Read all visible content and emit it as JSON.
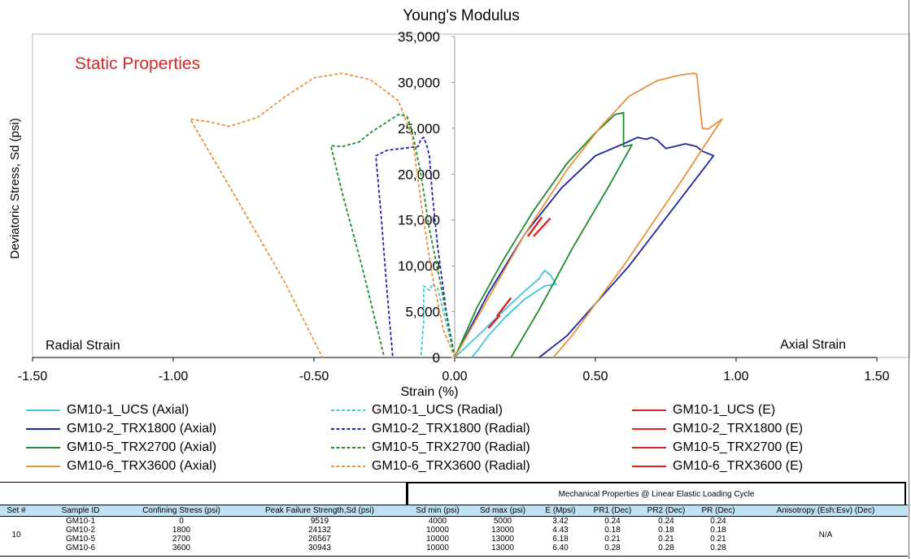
{
  "chart_data": {
    "type": "line",
    "title": "Young's Modulus",
    "xlabel": "Strain (%)",
    "ylabel": "Deviatoric Stress, Sd (psi)",
    "xlim": [
      -1.5,
      1.5
    ],
    "ylim": [
      0,
      35000
    ],
    "x_ticks": [
      -1.5,
      -1.0,
      -0.5,
      0.0,
      0.5,
      1.0,
      1.5
    ],
    "x_tick_labels": [
      "-1.50",
      "-1.00",
      "-0.50",
      "0.00",
      "0.50",
      "1.00",
      "1.50"
    ],
    "y_ticks": [
      0,
      5000,
      10000,
      15000,
      20000,
      25000,
      30000,
      35000
    ],
    "y_tick_labels": [
      "0",
      "5,000",
      "10,000",
      "15,000",
      "20,000",
      "25,000",
      "30,000",
      "35,000"
    ],
    "grid": false,
    "legend_position": "bottom",
    "annotations": {
      "static": "Static Properties",
      "radial": "Radial Strain",
      "axial": "Axial Strain"
    },
    "series": [
      {
        "name": "GM10-1_UCS (Axial)",
        "color": "#3cc7df",
        "style": "solid",
        "points": [
          [
            0.0,
            0
          ],
          [
            0.08,
            2300
          ],
          [
            0.16,
            4700
          ],
          [
            0.24,
            7000
          ],
          [
            0.3,
            8600
          ],
          [
            0.32,
            9500
          ],
          [
            0.34,
            9000
          ],
          [
            0.36,
            8000
          ],
          [
            0.32,
            7800
          ],
          [
            0.25,
            6400
          ],
          [
            0.18,
            4400
          ],
          [
            0.12,
            2400
          ],
          [
            0.08,
            700
          ],
          [
            0.06,
            0
          ]
        ]
      },
      {
        "name": "GM10-1_UCS (Radial)",
        "color": "#3cc7df",
        "style": "dashed",
        "points": [
          [
            0.0,
            0
          ],
          [
            -0.02,
            2500
          ],
          [
            -0.04,
            5000
          ],
          [
            -0.06,
            7500
          ],
          [
            -0.08,
            8000
          ],
          [
            -0.09,
            7300
          ],
          [
            -0.1,
            7600
          ],
          [
            -0.11,
            7800
          ],
          [
            -0.11,
            4000
          ],
          [
            -0.12,
            0
          ]
        ]
      },
      {
        "name": "GM10-1_UCS (E)",
        "color": "#e02020",
        "style": "solid",
        "points": [
          [
            0.12,
            3200
          ],
          [
            0.16,
            4600
          ]
        ]
      },
      {
        "name": "GM10-2_TRX1800 (Axial)",
        "color": "#1e26a0",
        "style": "solid",
        "points": [
          [
            0.0,
            0
          ],
          [
            0.12,
            7000
          ],
          [
            0.25,
            13500
          ],
          [
            0.38,
            18500
          ],
          [
            0.5,
            22000
          ],
          [
            0.6,
            23300
          ],
          [
            0.65,
            24000
          ],
          [
            0.68,
            23800
          ],
          [
            0.7,
            24000
          ],
          [
            0.72,
            23700
          ],
          [
            0.75,
            22800
          ],
          [
            0.78,
            23000
          ],
          [
            0.82,
            23300
          ],
          [
            0.86,
            23000
          ],
          [
            0.88,
            22500
          ],
          [
            0.92,
            22000
          ],
          [
            0.82,
            18000
          ],
          [
            0.62,
            10000
          ],
          [
            0.4,
            2400
          ],
          [
            0.3,
            0
          ]
        ]
      },
      {
        "name": "GM10-2_TRX1800 (Radial)",
        "color": "#1e26a0",
        "style": "dashed",
        "points": [
          [
            0.0,
            0
          ],
          [
            -0.03,
            5000
          ],
          [
            -0.06,
            12000
          ],
          [
            -0.08,
            18000
          ],
          [
            -0.09,
            22000
          ],
          [
            -0.1,
            23200
          ],
          [
            -0.11,
            24000
          ],
          [
            -0.12,
            23800
          ],
          [
            -0.13,
            23000
          ],
          [
            -0.16,
            22900
          ],
          [
            -0.24,
            22600
          ],
          [
            -0.28,
            22000
          ],
          [
            -0.26,
            15000
          ],
          [
            -0.24,
            7000
          ],
          [
            -0.22,
            0
          ]
        ]
      },
      {
        "name": "GM10-2_TRX1800 (E)",
        "color": "#e02020",
        "style": "solid",
        "points": [
          [
            0.15,
            4500
          ],
          [
            0.2,
            6500
          ]
        ]
      },
      {
        "name": "GM10-5_TRX2700 (Axial)",
        "color": "#1e8c2e",
        "style": "solid",
        "points": [
          [
            0.0,
            0
          ],
          [
            0.08,
            5500
          ],
          [
            0.17,
            10500
          ],
          [
            0.28,
            16000
          ],
          [
            0.4,
            21200
          ],
          [
            0.5,
            24500
          ],
          [
            0.57,
            26500
          ],
          [
            0.6,
            26700
          ],
          [
            0.6,
            23000
          ],
          [
            0.63,
            23200
          ],
          [
            0.55,
            18800
          ],
          [
            0.42,
            12000
          ],
          [
            0.3,
            5200
          ],
          [
            0.2,
            0
          ]
        ]
      },
      {
        "name": "GM10-5_TRX2700 (Radial)",
        "color": "#1e8c2e",
        "style": "dashed",
        "points": [
          [
            0.0,
            0
          ],
          [
            -0.02,
            3000
          ],
          [
            -0.05,
            8000
          ],
          [
            -0.09,
            14000
          ],
          [
            -0.12,
            20000
          ],
          [
            -0.15,
            24500
          ],
          [
            -0.17,
            26300
          ],
          [
            -0.2,
            26500
          ],
          [
            -0.25,
            25500
          ],
          [
            -0.3,
            24500
          ],
          [
            -0.34,
            23500
          ],
          [
            -0.4,
            23000
          ],
          [
            -0.44,
            23100
          ],
          [
            -0.4,
            18000
          ],
          [
            -0.33,
            10000
          ],
          [
            -0.25,
            0
          ]
        ]
      },
      {
        "name": "GM10-5_TRX2700 (E)",
        "color": "#e02020",
        "style": "solid",
        "points": [
          [
            0.28,
            13200
          ],
          [
            0.34,
            15200
          ]
        ]
      },
      {
        "name": "GM10-6_TRX3600 (Axial)",
        "color": "#e8913f",
        "style": "solid",
        "points": [
          [
            0.0,
            0
          ],
          [
            0.12,
            6500
          ],
          [
            0.25,
            13500
          ],
          [
            0.4,
            20500
          ],
          [
            0.52,
            25200
          ],
          [
            0.62,
            28500
          ],
          [
            0.72,
            30200
          ],
          [
            0.8,
            30800
          ],
          [
            0.85,
            31000
          ],
          [
            0.86,
            30900
          ],
          [
            0.88,
            25000
          ],
          [
            0.9,
            24900
          ],
          [
            0.95,
            26000
          ],
          [
            0.8,
            19000
          ],
          [
            0.6,
            10000
          ],
          [
            0.42,
            2500
          ],
          [
            0.35,
            0
          ]
        ]
      },
      {
        "name": "GM10-6_TRX3600 (Radial)",
        "color": "#e8913f",
        "style": "dashed",
        "points": [
          [
            0.0,
            0
          ],
          [
            -0.04,
            3000
          ],
          [
            -0.08,
            9000
          ],
          [
            -0.12,
            17000
          ],
          [
            -0.15,
            24000
          ],
          [
            -0.2,
            28000
          ],
          [
            -0.3,
            30300
          ],
          [
            -0.4,
            31000
          ],
          [
            -0.5,
            30500
          ],
          [
            -0.6,
            28500
          ],
          [
            -0.7,
            26200
          ],
          [
            -0.8,
            25200
          ],
          [
            -0.87,
            25700
          ],
          [
            -0.94,
            26000
          ],
          [
            -0.75,
            16000
          ],
          [
            -0.6,
            8000
          ],
          [
            -0.47,
            0
          ]
        ]
      },
      {
        "name": "GM10-6_TRX3600 (E)",
        "color": "#e02020",
        "style": "solid",
        "points": [
          [
            0.26,
            13200
          ],
          [
            0.31,
            15300
          ]
        ]
      }
    ]
  },
  "properties_table": {
    "group_header": "Mechanical Properties @ Linear Elastic Loading Cycle",
    "columns": [
      "Set #",
      "Sample ID",
      "Confining Stress (psi)",
      "Peak Failure Strength,Sd (psi)",
      "Sd min (psi)",
      "Sd max (psi)",
      "E (Mpsi)",
      "PR1 (Dec)",
      "PR2 (Dec)",
      "PR (Dec)",
      "Anisotropy (Esh:Esv) (Dec)"
    ],
    "set_number": "10",
    "anisotropy": "N/A",
    "rows": [
      [
        "GM10-1",
        "0",
        "9519",
        "4000",
        "5000",
        "3.42",
        "0.24",
        "0.24",
        "0.24"
      ],
      [
        "GM10-2",
        "1800",
        "24132",
        "10000",
        "13000",
        "4.43",
        "0.18",
        "0.18",
        "0.18"
      ],
      [
        "GM10-5",
        "2700",
        "26567",
        "10000",
        "13000",
        "6.18",
        "0.21",
        "0.21",
        "0.21"
      ],
      [
        "GM10-6",
        "3600",
        "30943",
        "10000",
        "13000",
        "6.40",
        "0.28",
        "0.28",
        "0.28"
      ]
    ]
  }
}
